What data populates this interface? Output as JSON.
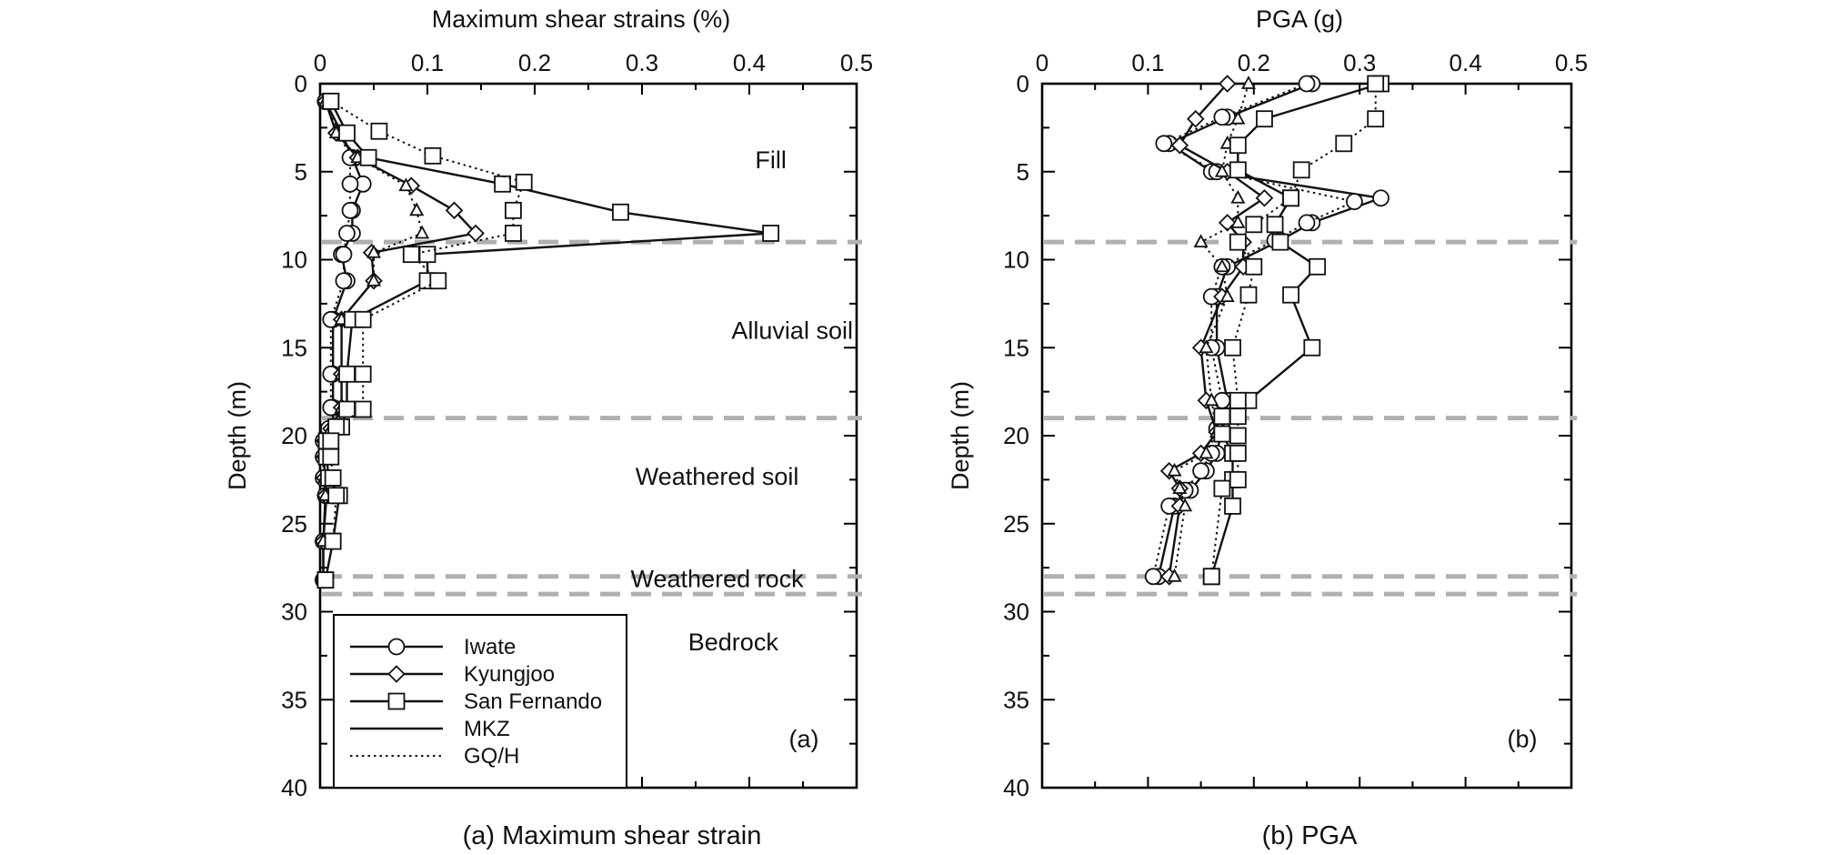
{
  "captions": {
    "a": "(a) Maximum shear strain",
    "b": "(b) PGA"
  },
  "legend": [
    {
      "label": "Iwate",
      "kind": "marker",
      "marker": "circle"
    },
    {
      "label": "Kyungjoo",
      "kind": "marker",
      "marker": "diamond"
    },
    {
      "label": "San Fernando",
      "kind": "marker",
      "marker": "square"
    },
    {
      "label": "MKZ",
      "kind": "line",
      "style": "solid"
    },
    {
      "label": "GQ/H",
      "kind": "line",
      "style": "dotted"
    }
  ],
  "chart_data": [
    {
      "type": "line",
      "panel_label": "(a)",
      "xlabel": "Maximum shear strains (%)",
      "ylabel": "Depth (m)",
      "xlim": [
        0,
        0.5
      ],
      "ylim": [
        0,
        40
      ],
      "y_inverted": true,
      "x_axis_position": "top",
      "xticks": [
        "0",
        "0.1",
        "0.2",
        "0.3",
        "0.4",
        "0.5"
      ],
      "yticks": [
        "0",
        "5",
        "10",
        "15",
        "20",
        "25",
        "30",
        "35",
        "40"
      ],
      "layer_boundaries": [
        9,
        19,
        28,
        29
      ],
      "layer_labels": [
        {
          "text": "Fill",
          "x": 0.42,
          "y": 4.8
        },
        {
          "text": "Alluvial soil",
          "x": 0.44,
          "y": 14.5
        },
        {
          "text": "Weathered soil",
          "x": 0.37,
          "y": 22.8
        },
        {
          "text": "Weathered rock",
          "x": 0.37,
          "y": 28.6
        },
        {
          "text": "Bedrock",
          "x": 0.385,
          "y": 32.2
        }
      ],
      "series": [
        {
          "name": "Iwate",
          "model": "MKZ",
          "marker": "circle",
          "x": [
            0.005,
            0.02,
            0.03,
            0.04,
            0.03,
            0.03,
            0.02,
            0.025,
            0.012,
            0.012,
            0.012,
            0.012,
            0.004,
            0.004,
            0.004,
            0.006,
            0.003,
            0.003
          ],
          "y": [
            1,
            2.8,
            4.2,
            5.7,
            7.2,
            8.5,
            9.7,
            11.2,
            13.4,
            16.5,
            18.4,
            19.6,
            20.3,
            21.2,
            22.4,
            23.4,
            26,
            28.2
          ]
        },
        {
          "name": "Iwate",
          "model": "GQ/H",
          "marker": "circle",
          "x": [
            0.005,
            0.018,
            0.028,
            0.028,
            0.028,
            0.025,
            0.022,
            0.022,
            0.01,
            0.01,
            0.01,
            0.008,
            0.003,
            0.003,
            0.003,
            0.005,
            0.003,
            0.003
          ],
          "y": [
            1,
            2.8,
            4.2,
            5.7,
            7.2,
            8.5,
            9.7,
            11.2,
            13.4,
            16.5,
            18.4,
            19.6,
            20.3,
            21.2,
            22.4,
            23.4,
            26,
            28.2
          ]
        },
        {
          "name": "Kyungjoo",
          "model": "MKZ",
          "marker": "diamond",
          "x": [
            0.005,
            0.015,
            0.035,
            0.085,
            0.125,
            0.145,
            0.048,
            0.05,
            0.02,
            0.02,
            0.02,
            0.01,
            0.004,
            0.004,
            0.004,
            0.005,
            0.003,
            0.003
          ],
          "y": [
            1,
            2.8,
            4.2,
            5.8,
            7.2,
            8.5,
            9.6,
            11.2,
            13.4,
            16.5,
            18.4,
            19.6,
            20.3,
            21.2,
            22.4,
            23.4,
            26,
            28.2
          ]
        },
        {
          "name": "Kyungjoo",
          "model": "GQ/H",
          "marker": "triangle",
          "x": [
            0.005,
            0.015,
            0.035,
            0.08,
            0.09,
            0.095,
            0.05,
            0.05,
            0.02,
            0.02,
            0.02,
            0.01,
            0.004,
            0.004,
            0.004,
            0.005,
            0.003,
            0.003
          ],
          "y": [
            1,
            2.8,
            4.2,
            5.8,
            7.2,
            8.5,
            9.6,
            11.2,
            13.4,
            16.5,
            18.4,
            19.6,
            20.3,
            21.2,
            22.4,
            23.4,
            26,
            28.2
          ]
        },
        {
          "name": "San Fernando",
          "model": "MKZ",
          "marker": "square",
          "x": [
            0.01,
            0.025,
            0.045,
            0.17,
            0.28,
            0.42,
            0.1,
            0.1,
            0.03,
            0.025,
            0.025,
            0.02,
            0.006,
            0.006,
            0.008,
            0.018,
            0.012,
            0.005
          ],
          "y": [
            1,
            2.8,
            4.2,
            5.7,
            7.3,
            8.5,
            9.7,
            11.2,
            13.4,
            16.5,
            18.5,
            19.5,
            20.3,
            21.2,
            22.4,
            23.4,
            26,
            28.2
          ]
        },
        {
          "name": "San Fernando",
          "model": "GQ/H",
          "marker": "square",
          "x": [
            0.01,
            0.055,
            0.105,
            0.19,
            0.18,
            0.18,
            0.085,
            0.11,
            0.04,
            0.04,
            0.04,
            0.015,
            0.01,
            0.01,
            0.012,
            0.015,
            0.012,
            0.005
          ],
          "y": [
            1,
            2.7,
            4.1,
            5.6,
            7.2,
            8.5,
            9.7,
            11.2,
            13.4,
            16.5,
            18.5,
            19.5,
            20.3,
            21.2,
            22.4,
            23.4,
            26,
            28.2
          ]
        }
      ]
    },
    {
      "type": "line",
      "panel_label": "(b)",
      "xlabel": "PGA (g)",
      "ylabel": "Depth (m)",
      "xlim": [
        0,
        0.5
      ],
      "ylim": [
        0,
        40
      ],
      "y_inverted": true,
      "x_axis_position": "top",
      "xticks": [
        "0",
        "0.1",
        "0.2",
        "0.3",
        "0.4",
        "0.5"
      ],
      "yticks": [
        "0",
        "5",
        "10",
        "15",
        "20",
        "25",
        "30",
        "35",
        "40"
      ],
      "layer_boundaries": [
        9,
        19,
        28,
        29
      ],
      "layer_labels": [],
      "series": [
        {
          "name": "Iwate",
          "model": "MKZ",
          "marker": "circle",
          "x": [
            0.255,
            0.175,
            0.12,
            0.16,
            0.32,
            0.255,
            0.225,
            0.175,
            0.165,
            0.165,
            0.175,
            0.17,
            0.165,
            0.155,
            0.14,
            0.125,
            0.11
          ],
          "y": [
            0,
            1.9,
            3.4,
            5,
            6.5,
            7.9,
            8.9,
            10.4,
            12.1,
            15,
            18,
            19.6,
            21,
            22,
            23.1,
            24,
            28
          ]
        },
        {
          "name": "Iwate",
          "model": "GQ/H",
          "marker": "circle",
          "x": [
            0.25,
            0.17,
            0.115,
            0.165,
            0.295,
            0.25,
            0.22,
            0.17,
            0.16,
            0.16,
            0.17,
            0.165,
            0.16,
            0.15,
            0.135,
            0.12,
            0.105
          ],
          "y": [
            0,
            1.9,
            3.4,
            5,
            6.7,
            7.9,
            8.9,
            10.4,
            12.1,
            15,
            18,
            19.6,
            21,
            22,
            23.1,
            24,
            28
          ]
        },
        {
          "name": "Kyungjoo",
          "model": "MKZ",
          "marker": "diamond",
          "x": [
            0.175,
            0.145,
            0.13,
            0.175,
            0.21,
            0.175,
            0.19,
            0.19,
            0.17,
            0.15,
            0.155,
            0.165,
            0.15,
            0.12,
            0.13,
            0.13,
            0.12
          ],
          "y": [
            0,
            2,
            3.5,
            5,
            6.5,
            7.9,
            9,
            10.4,
            12.1,
            15,
            18,
            19.8,
            21,
            22,
            23,
            24,
            28
          ]
        },
        {
          "name": "Kyungjoo",
          "model": "GQ/H",
          "marker": "triangle",
          "x": [
            0.195,
            0.185,
            0.175,
            0.17,
            0.185,
            0.185,
            0.15,
            0.17,
            0.175,
            0.155,
            0.16,
            0.165,
            0.155,
            0.125,
            0.13,
            0.135,
            0.125
          ],
          "y": [
            0,
            2,
            3.4,
            5,
            6.5,
            7.9,
            9,
            10.4,
            12.1,
            15,
            18,
            19.8,
            21,
            22,
            23,
            24,
            28
          ]
        },
        {
          "name": "San Fernando",
          "model": "MKZ",
          "marker": "square",
          "x": [
            0.32,
            0.21,
            0.185,
            0.185,
            0.235,
            0.22,
            0.225,
            0.26,
            0.235,
            0.255,
            0.195,
            0.17,
            0.17,
            0.18,
            0.18,
            0.18,
            0.16
          ],
          "y": [
            0,
            2,
            3.5,
            4.9,
            6.5,
            8,
            9,
            10.4,
            12,
            15,
            18,
            18.9,
            19.9,
            21,
            22.5,
            24,
            28
          ]
        },
        {
          "name": "San Fernando",
          "model": "GQ/H",
          "marker": "square",
          "x": [
            0.315,
            0.315,
            0.285,
            0.245,
            0.235,
            0.2,
            0.185,
            0.2,
            0.195,
            0.18,
            0.185,
            0.185,
            0.185,
            0.185,
            0.185,
            0.17,
            0.16
          ],
          "y": [
            0,
            2,
            3.4,
            4.9,
            6.5,
            8,
            9,
            10.4,
            12,
            15,
            18,
            18.9,
            20,
            21,
            22.5,
            23,
            28
          ]
        }
      ]
    }
  ]
}
